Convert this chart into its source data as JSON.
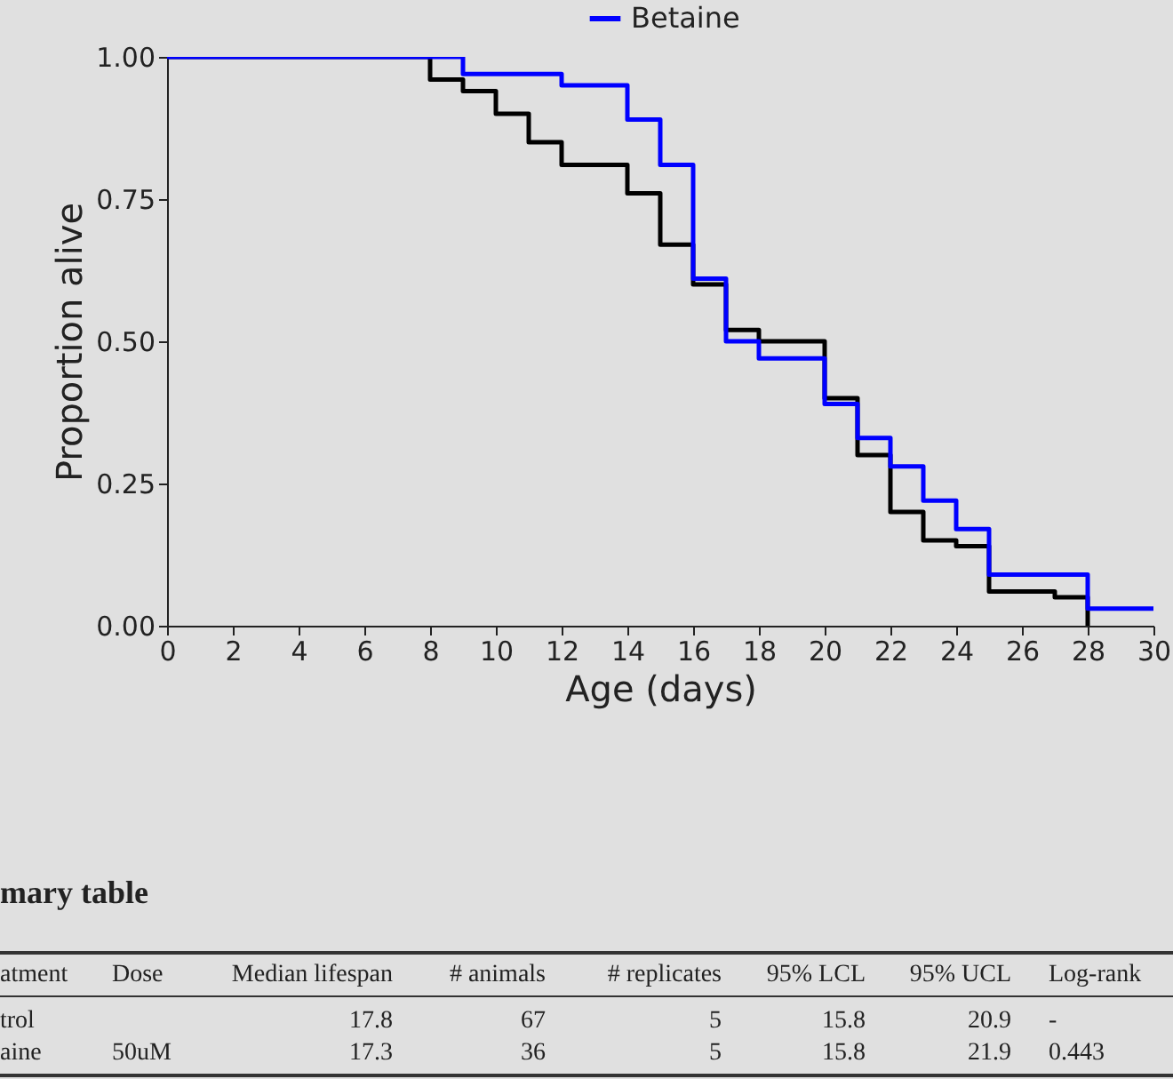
{
  "chart_data": {
    "type": "step",
    "xlabel": "Age (days)",
    "ylabel": "Proportion alive",
    "xlim": [
      0,
      30
    ],
    "xticks": [
      0,
      2,
      4,
      6,
      8,
      10,
      12,
      14,
      16,
      18,
      20,
      22,
      24,
      26,
      28,
      30
    ],
    "ylim": [
      0,
      1
    ],
    "yticks": [
      {
        "value": 0,
        "label": "0.00"
      },
      {
        "value": 0.25,
        "label": "0.25"
      },
      {
        "value": 0.5,
        "label": "0.50"
      },
      {
        "value": 0.75,
        "label": "0.75"
      },
      {
        "value": 1,
        "label": "1.00"
      }
    ],
    "legend": "top",
    "series": [
      {
        "color": "#000000",
        "x": [
          0,
          8,
          9,
          10,
          11,
          12,
          14,
          15,
          16,
          17,
          18,
          20,
          21,
          22,
          23,
          24,
          25,
          27,
          28
        ],
        "values": [
          1,
          0.96,
          0.94,
          0.9,
          0.85,
          0.81,
          0.76,
          0.67,
          0.6,
          0.52,
          0.5,
          0.4,
          0.3,
          0.2,
          0.15,
          0.14,
          0.06,
          0.05,
          0
        ]
      },
      {
        "name": "Betaine",
        "color": "#0000ff",
        "x": [
          0,
          9,
          12,
          14,
          15,
          16,
          17,
          18,
          20,
          21,
          22,
          23,
          24,
          25,
          28,
          30
        ],
        "values": [
          1,
          0.97,
          0.95,
          0.89,
          0.81,
          0.61,
          0.5,
          0.47,
          0.39,
          0.33,
          0.28,
          0.22,
          0.17,
          0.09,
          0.03,
          0.03
        ]
      }
    ],
    "annotations": [
      "mary table",
      "atment",
      "Dose",
      "Median lifespan",
      "# animals",
      "# replicates",
      "95% LCL",
      "95% UCL",
      "Log-rank",
      "trol",
      "17.8",
      "67",
      "5",
      "15.8",
      "20.9",
      "-",
      "aine",
      "50uM",
      "17.3",
      "36",
      "5",
      "15.8",
      "21.9",
      "0.443"
    ]
  }
}
